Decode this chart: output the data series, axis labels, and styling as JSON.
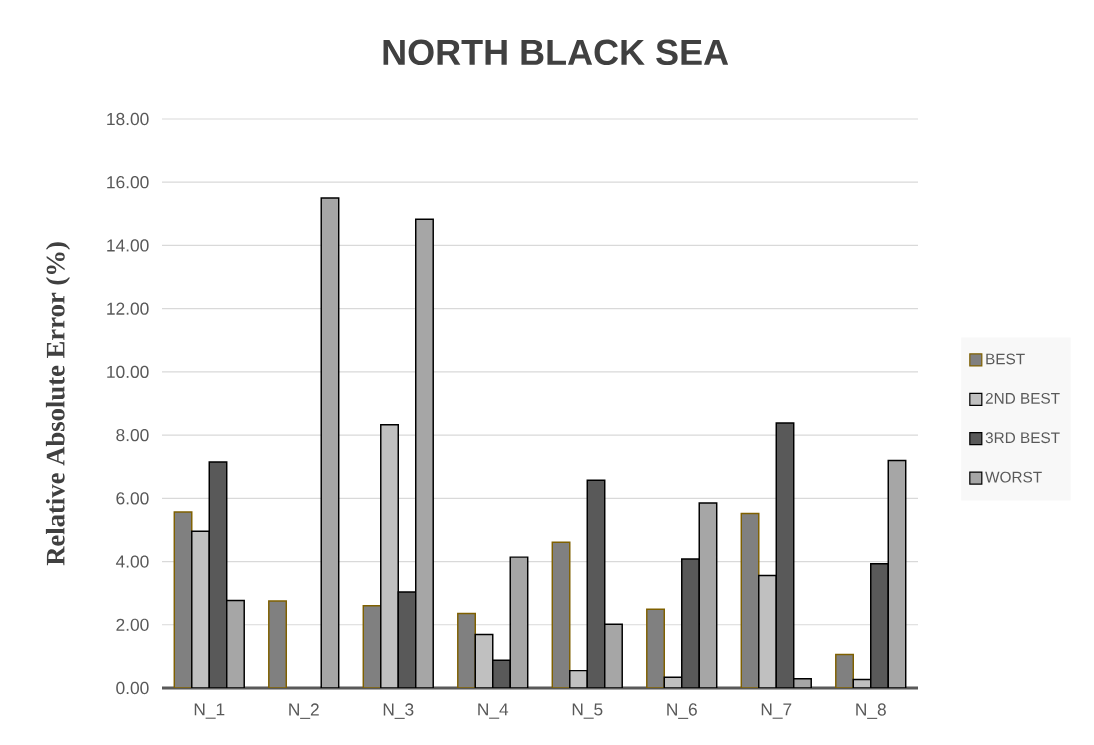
{
  "chart_data": {
    "type": "bar",
    "title": "NORTH BLACK SEA",
    "ylabel": "Relative Absolute Error (%)",
    "categories": [
      "N_1",
      "N_2",
      "N_3",
      "N_4",
      "N_5",
      "N_6",
      "N_7",
      "N_8"
    ],
    "series": [
      {
        "name": "BEST",
        "color": "#808080",
        "values": [
          5.57,
          2.75,
          2.6,
          2.36,
          4.61,
          2.49,
          5.52,
          1.06
        ]
      },
      {
        "name": "2ND BEST",
        "color": "#c0c0c0",
        "values": [
          4.96,
          null,
          8.33,
          1.69,
          0.55,
          0.34,
          3.56,
          0.27
        ]
      },
      {
        "name": "3RD BEST",
        "color": "#595959",
        "values": [
          7.15,
          null,
          3.04,
          0.88,
          6.57,
          4.08,
          8.38,
          3.93
        ]
      },
      {
        "name": "WORST",
        "color": "#a6a6a6",
        "values": [
          2.77,
          15.5,
          14.83,
          4.14,
          2.02,
          5.85,
          0.29,
          7.2
        ]
      }
    ],
    "ylim": [
      0,
      18
    ],
    "yticks": [
      {
        "value": 0,
        "label": "0.00"
      },
      {
        "value": 2,
        "label": "2.00"
      },
      {
        "value": 4,
        "label": "4.00"
      },
      {
        "value": 6,
        "label": "6.00"
      },
      {
        "value": 8,
        "label": "8.00"
      },
      {
        "value": 10,
        "label": "10.00"
      },
      {
        "value": 12,
        "label": "12.00"
      },
      {
        "value": 14,
        "label": "14.00"
      },
      {
        "value": 16,
        "label": "16.00"
      },
      {
        "value": 18,
        "label": "18.00"
      }
    ],
    "grid": "y",
    "legend": "right"
  }
}
